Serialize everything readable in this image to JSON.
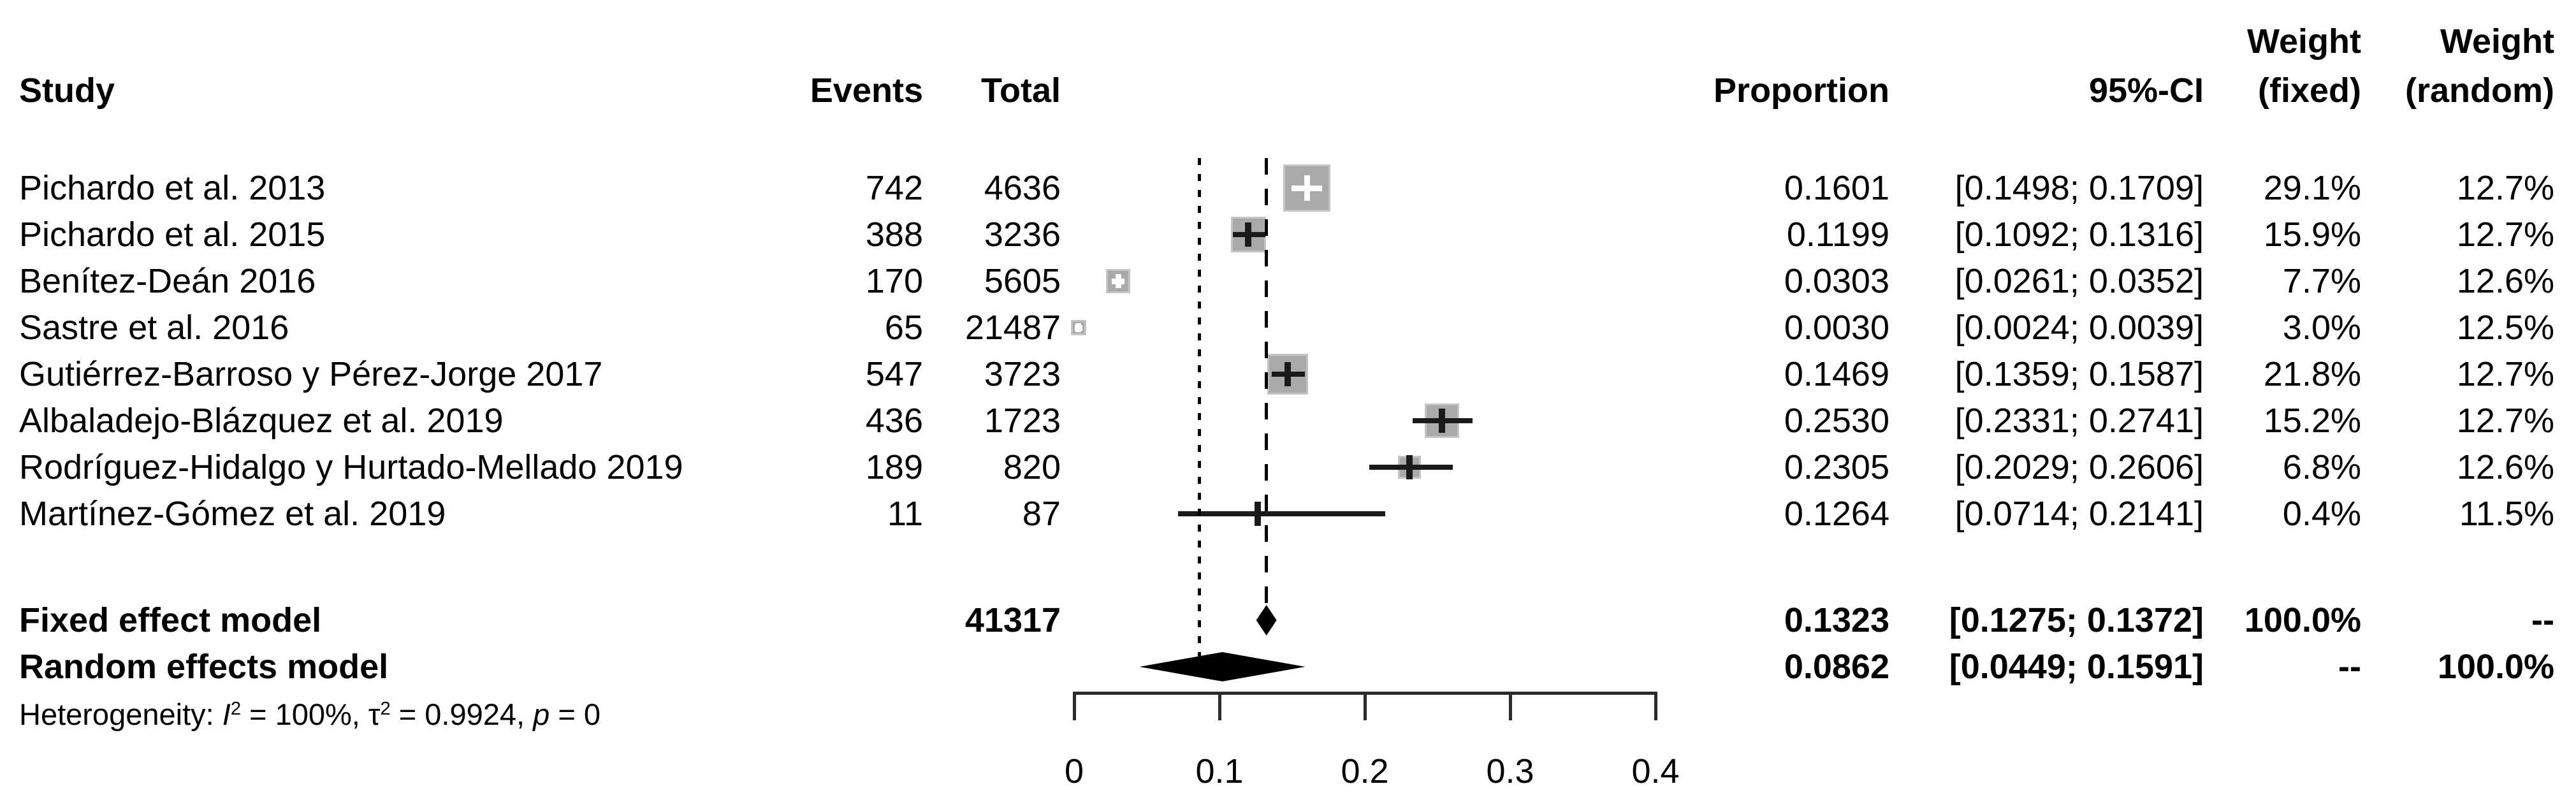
{
  "header": {
    "study": "Study",
    "events": "Events",
    "total": "Total",
    "proportion": "Proportion",
    "ci": "95%-CI",
    "weight": "Weight",
    "weight_fixed": "(fixed)",
    "weight_random": "(random)"
  },
  "chart_data": {
    "type": "forest",
    "title": "",
    "xlabel": "",
    "x_axis": {
      "range": [
        0,
        0.4
      ],
      "ticks": [
        0,
        0.1,
        0.2,
        0.3,
        0.4
      ],
      "tick_labels": [
        "0",
        "0.1",
        "0.2",
        "0.3",
        "0.4"
      ]
    },
    "reference_lines": [
      {
        "style": "dashed",
        "x": 0.1323,
        "meaning": "fixed effect estimate"
      },
      {
        "style": "dotted",
        "x": 0.0862,
        "meaning": "random effects estimate"
      }
    ],
    "studies": [
      {
        "name": "Pichardo et al. 2013",
        "events": 742,
        "total": 4636,
        "proportion": 0.1601,
        "proportion_text": "0.1601",
        "ci_low": 0.1498,
        "ci_high": 0.1709,
        "ci_text": "[0.1498; 0.1709]",
        "weight_fixed_pct": 29.1,
        "weight_fixed_text": "29.1%",
        "weight_random_pct": 12.7,
        "weight_random_text": "12.7%"
      },
      {
        "name": "Pichardo et al. 2015",
        "events": 388,
        "total": 3236,
        "proportion": 0.1199,
        "proportion_text": "0.1199",
        "ci_low": 0.1092,
        "ci_high": 0.1316,
        "ci_text": "[0.1092; 0.1316]",
        "weight_fixed_pct": 15.9,
        "weight_fixed_text": "15.9%",
        "weight_random_pct": 12.7,
        "weight_random_text": "12.7%"
      },
      {
        "name": "Benítez-Deán 2016",
        "events": 170,
        "total": 5605,
        "proportion": 0.0303,
        "proportion_text": "0.0303",
        "ci_low": 0.0261,
        "ci_high": 0.0352,
        "ci_text": "[0.0261; 0.0352]",
        "weight_fixed_pct": 7.7,
        "weight_fixed_text": "7.7%",
        "weight_random_pct": 12.6,
        "weight_random_text": "12.6%"
      },
      {
        "name": "Sastre et al. 2016",
        "events": 65,
        "total": 21487,
        "proportion": 0.003,
        "proportion_text": "0.0030",
        "ci_low": 0.0024,
        "ci_high": 0.0039,
        "ci_text": "[0.0024; 0.0039]",
        "weight_fixed_pct": 3.0,
        "weight_fixed_text": "3.0%",
        "weight_random_pct": 12.5,
        "weight_random_text": "12.5%"
      },
      {
        "name": "Gutiérrez-Barroso y Pérez-Jorge 2017",
        "events": 547,
        "total": 3723,
        "proportion": 0.1469,
        "proportion_text": "0.1469",
        "ci_low": 0.1359,
        "ci_high": 0.1587,
        "ci_text": "[0.1359; 0.1587]",
        "weight_fixed_pct": 21.8,
        "weight_fixed_text": "21.8%",
        "weight_random_pct": 12.7,
        "weight_random_text": "12.7%"
      },
      {
        "name": "Albaladejo-Blázquez et al. 2019",
        "events": 436,
        "total": 1723,
        "proportion": 0.253,
        "proportion_text": "0.2530",
        "ci_low": 0.2331,
        "ci_high": 0.2741,
        "ci_text": "[0.2331; 0.2741]",
        "weight_fixed_pct": 15.2,
        "weight_fixed_text": "15.2%",
        "weight_random_pct": 12.7,
        "weight_random_text": "12.7%"
      },
      {
        "name": "Rodríguez-Hidalgo y Hurtado-Mellado 2019",
        "events": 189,
        "total": 820,
        "proportion": 0.2305,
        "proportion_text": "0.2305",
        "ci_low": 0.2029,
        "ci_high": 0.2606,
        "ci_text": "[0.2029; 0.2606]",
        "weight_fixed_pct": 6.8,
        "weight_fixed_text": "6.8%",
        "weight_random_pct": 12.6,
        "weight_random_text": "12.6%"
      },
      {
        "name": "Martínez-Gómez et al. 2019",
        "events": 11,
        "total": 87,
        "proportion": 0.1264,
        "proportion_text": "0.1264",
        "ci_low": 0.0714,
        "ci_high": 0.2141,
        "ci_text": "[0.0714; 0.2141]",
        "weight_fixed_pct": 0.4,
        "weight_fixed_text": "0.4%",
        "weight_random_pct": 11.5,
        "weight_random_text": "11.5%"
      }
    ],
    "fixed_effect": {
      "label": "Fixed effect model",
      "total": 41317,
      "proportion": 0.1323,
      "proportion_text": "0.1323",
      "ci_low": 0.1275,
      "ci_high": 0.1372,
      "ci_text": "[0.1275; 0.1372]",
      "weight_fixed_text": "100.0%",
      "weight_random_text": "--"
    },
    "random_effects": {
      "label": "Random effects model",
      "proportion": 0.0862,
      "proportion_text": "0.0862",
      "ci_low": 0.0449,
      "ci_high": 0.1591,
      "ci_text": "[0.0449; 0.1591]",
      "weight_fixed_text": "--",
      "weight_random_text": "100.0%"
    },
    "heterogeneity": {
      "segments": [
        {
          "t": "Heterogeneity: "
        },
        {
          "t": "I",
          "italic": true
        },
        {
          "t": "2",
          "sup": true
        },
        {
          "t": " = 100%, "
        },
        {
          "t": "τ"
        },
        {
          "t": "2",
          "sup": true
        },
        {
          "t": " = 0.9924, "
        },
        {
          "t": "p",
          "italic": true
        },
        {
          "t": " = 0"
        }
      ]
    },
    "colors": {
      "square": "#a9a9a9",
      "square_border": "#c4c4c4",
      "ci_line": "#1a1a1a",
      "diamond": "#000000",
      "axis": "#2b2b2b",
      "text": "#000000"
    },
    "legend_position": "none",
    "grid": false
  }
}
